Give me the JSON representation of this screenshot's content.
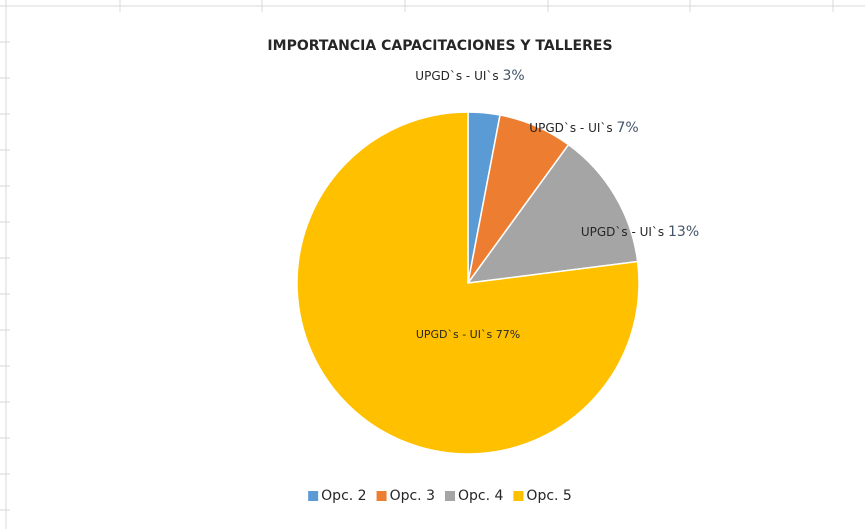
{
  "chart_data": {
    "type": "pie",
    "title": "IMPORTANCIA CAPACITACIONES Y TALLERES",
    "categories": [
      "Opc. 2",
      "Opc. 3",
      "Opc. 4",
      "Opc. 5"
    ],
    "series": [
      {
        "name": "UPGD`s - UI`s",
        "values": [
          3,
          7,
          13,
          77
        ],
        "value_labels": [
          "3%",
          "7%",
          "13%",
          "77%"
        ]
      }
    ],
    "colors": [
      "#5b9bd5",
      "#ed7d31",
      "#a5a5a5",
      "#ffc000"
    ],
    "legend": "bottom"
  }
}
